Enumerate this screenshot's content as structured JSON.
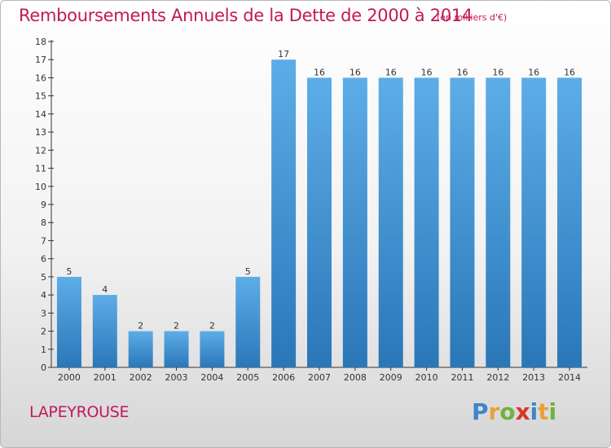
{
  "title": "Remboursements Annuels de la Dette de 2000 à 2014",
  "subtitle": "(en milliers d'€)",
  "town": "LAPEYROUSE",
  "logo": {
    "letters": [
      "P",
      "r",
      "o",
      "x",
      "i",
      "t",
      "i"
    ]
  },
  "colors": {
    "accent": "#c2185b",
    "bar_light": "#5dade8",
    "bar_dark": "#2a77b8"
  },
  "chart_data": {
    "type": "bar",
    "categories": [
      "2000",
      "2001",
      "2002",
      "2003",
      "2004",
      "2005",
      "2006",
      "2007",
      "2008",
      "2009",
      "2010",
      "2011",
      "2012",
      "2013",
      "2014"
    ],
    "values": [
      5,
      4,
      2,
      2,
      2,
      5,
      17,
      16,
      16,
      16,
      16,
      16,
      16,
      16,
      16
    ],
    "yticks": [
      "0",
      "1",
      "2",
      "3",
      "4",
      "5",
      "6",
      "7",
      "8",
      "9",
      "10",
      "11",
      "12",
      "13",
      "14",
      "15",
      "16",
      "17",
      "18"
    ],
    "ylim": [
      0,
      18
    ],
    "grid": false,
    "data_labels": true
  }
}
